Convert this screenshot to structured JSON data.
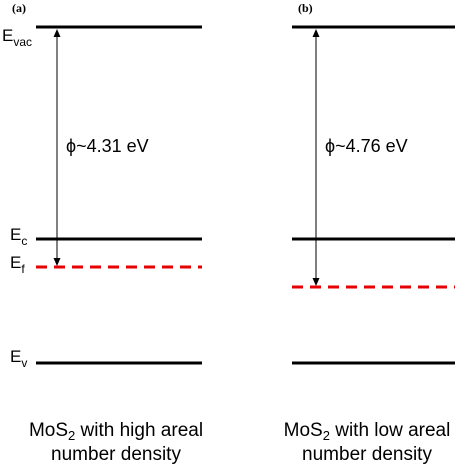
{
  "panels": [
    {
      "label": "(a)",
      "phi_label": "ϕ~4.31 eV",
      "caption": {
        "prefix": "MoS",
        "sub": "2",
        "line1_rest": " with high areal",
        "line2": "number density"
      }
    },
    {
      "label": "(b)",
      "phi_label": "ϕ~4.76 eV",
      "caption": {
        "prefix": "MoS",
        "sub": "2",
        "line1_rest": " with low areal",
        "line2": "number density"
      }
    }
  ],
  "levels": {
    "vac": {
      "main": "E",
      "sub": "vac"
    },
    "c": {
      "main": "E",
      "sub": "c"
    },
    "f": {
      "main": "E",
      "sub": "f"
    },
    "v": {
      "main": "E",
      "sub": "v"
    }
  },
  "colors": {
    "level_line": "#000000",
    "fermi_line": "#e60000",
    "arrow": "#000000"
  }
}
